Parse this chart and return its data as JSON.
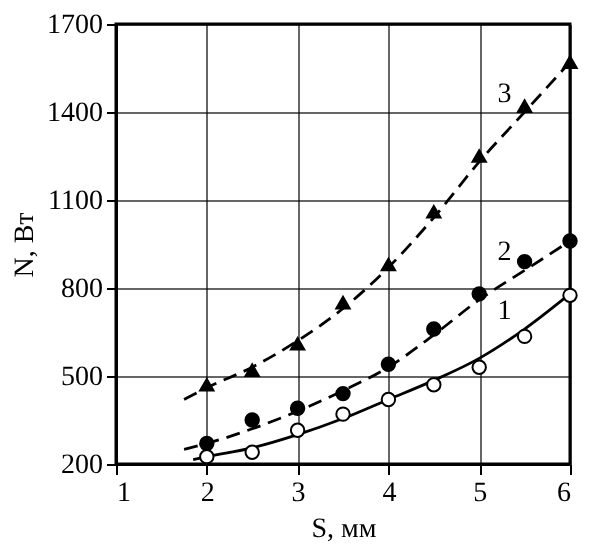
{
  "chart_data": {
    "type": "scatter",
    "xlabel": "S, мм",
    "ylabel": "N, Вт",
    "xlim": [
      1,
      6
    ],
    "ylim": [
      200,
      1700
    ],
    "xticks": [
      1,
      2,
      3,
      4,
      5,
      6
    ],
    "yticks": [
      200,
      500,
      800,
      1100,
      1400,
      1700
    ],
    "grid": true,
    "series": [
      {
        "name": "3",
        "type": "line",
        "color": "#000000",
        "line_style": "dashed",
        "marker": "none",
        "x": [
          1.75,
          2,
          2.5,
          3,
          3.5,
          4,
          4.5,
          5,
          5.5,
          6
        ],
        "values": [
          420,
          460,
          530,
          620,
          730,
          870,
          1040,
          1230,
          1400,
          1570
        ]
      },
      {
        "name": "2",
        "type": "line",
        "color": "#000000",
        "line_style": "dashed",
        "marker": "none",
        "x": [
          1.75,
          2,
          2.5,
          3,
          3.5,
          4,
          4.5,
          5,
          5.5,
          6
        ],
        "values": [
          250,
          270,
          320,
          380,
          450,
          530,
          640,
          760,
          860,
          960
        ]
      },
      {
        "name": "1",
        "type": "line",
        "color": "#000000",
        "line_style": "solid",
        "marker": "none",
        "x": [
          1.85,
          2,
          2.5,
          3,
          3.5,
          4,
          4.5,
          5,
          5.5,
          6
        ],
        "values": [
          215,
          225,
          255,
          300,
          355,
          420,
          485,
          560,
          660,
          780
        ]
      },
      {
        "color": "#000000",
        "marker": "triangle",
        "x": [
          2,
          2.5,
          3,
          3.5,
          4,
          4.5,
          5,
          5.5,
          6
        ],
        "values": [
          470,
          520,
          610,
          750,
          880,
          1060,
          1250,
          1420,
          1570
        ]
      },
      {
        "color": "#000000",
        "marker": "circle",
        "x": [
          2,
          2.5,
          3,
          3.5,
          4,
          4.5,
          5,
          5.5,
          6
        ],
        "values": [
          270,
          350,
          390,
          440,
          540,
          660,
          780,
          890,
          960
        ]
      },
      {
        "color": "#ffffff",
        "marker": "circle",
        "x": [
          2,
          2.5,
          3,
          3.5,
          4,
          4.5,
          5,
          5.5,
          6
        ],
        "values": [
          225,
          240,
          315,
          370,
          420,
          470,
          530,
          635,
          775
        ]
      }
    ]
  }
}
